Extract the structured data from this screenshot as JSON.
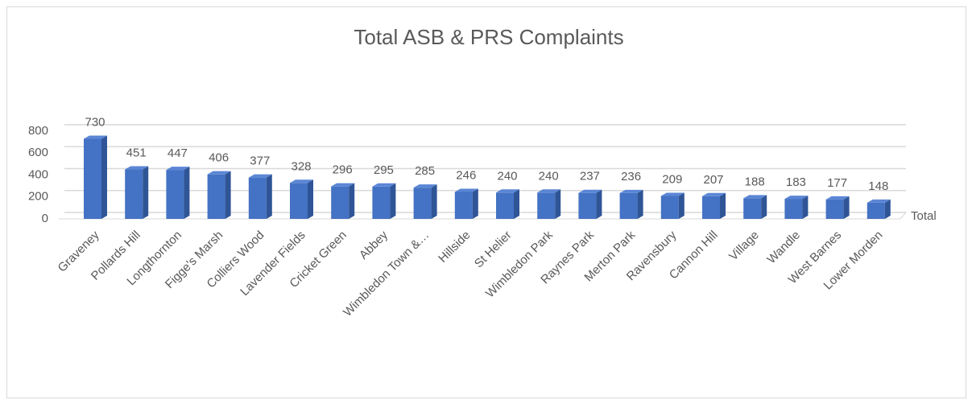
{
  "chart_data": {
    "type": "bar3d",
    "title": "Total ASB & PRS Complaints",
    "categories": [
      "Graveney",
      "Pollards Hill",
      "Longthornton",
      "Figge's Marsh",
      "Colliers Wood",
      "Lavender Fields",
      "Cricket Green",
      "Abbey",
      "Wimbledon Town &…",
      "Hillside",
      "St Helier",
      "Wimbledon Park",
      "Raynes Park",
      "Merton Park",
      "Ravensbury",
      "Cannon Hill",
      "Village",
      "Wandle",
      "West Barnes",
      "Lower Morden"
    ],
    "series": [
      {
        "name": "Total",
        "color": "#4472c4",
        "values": [
          730,
          451,
          447,
          406,
          377,
          328,
          296,
          295,
          285,
          246,
          240,
          240,
          237,
          236,
          209,
          207,
          188,
          183,
          177,
          148
        ]
      }
    ],
    "ylim": [
      0,
      800
    ],
    "yticks": [
      0,
      200,
      400,
      600,
      800
    ],
    "grid": true
  }
}
